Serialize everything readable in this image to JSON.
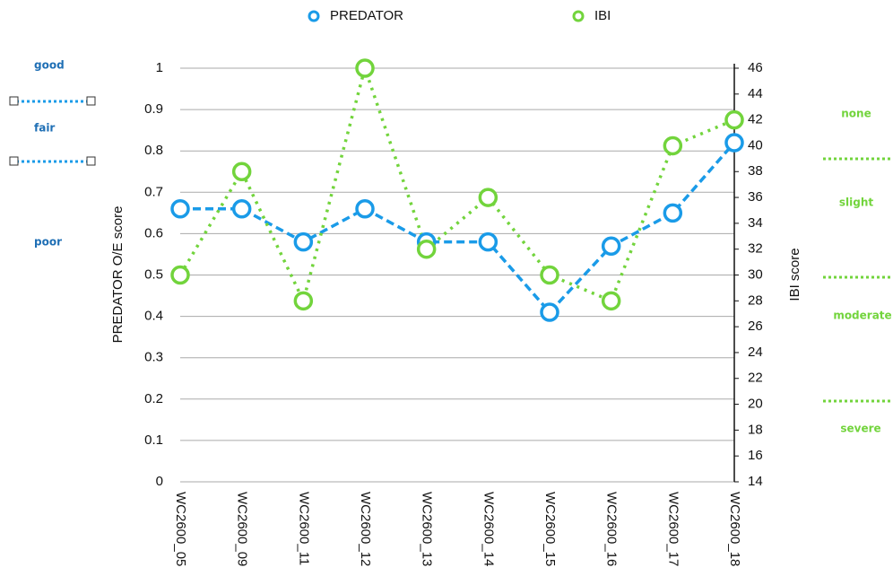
{
  "chart_data": {
    "type": "line",
    "categories": [
      "WC2600_05",
      "WC2600_09",
      "WC2600_11",
      "WC2600_12",
      "WC2600_13",
      "WC2600_14",
      "WC2600_15",
      "WC2600_16",
      "WC2600_17",
      "WC2600_18"
    ],
    "series": [
      {
        "name": "PREDATOR",
        "color": "#1a9be8",
        "values": [
          0.66,
          0.66,
          0.58,
          0.66,
          0.58,
          0.58,
          0.41,
          0.57,
          0.65,
          0.82
        ]
      },
      {
        "name": "IBI",
        "color": "#72d43c",
        "axis": "y2",
        "values": [
          30,
          38,
          28,
          46,
          32,
          36,
          30,
          28,
          40,
          42
        ]
      }
    ],
    "ylabel": "PREDATOR O/E score",
    "y2label": "IBI score",
    "ylim": [
      0,
      1
    ],
    "yticks": [
      0,
      0.1,
      0.2,
      0.3,
      0.4,
      0.5,
      0.6,
      0.7,
      0.8,
      0.9,
      1
    ],
    "y2lim": [
      14,
      46
    ],
    "y2ticks": [
      14,
      16,
      18,
      20,
      22,
      24,
      26,
      28,
      30,
      32,
      34,
      36,
      38,
      40,
      42,
      44,
      46
    ],
    "grid": true,
    "legend": "top",
    "left_annotations": [
      "good",
      "fair",
      "poor"
    ],
    "right_annotations": [
      "none",
      "slight",
      "moderate",
      "severe"
    ]
  }
}
